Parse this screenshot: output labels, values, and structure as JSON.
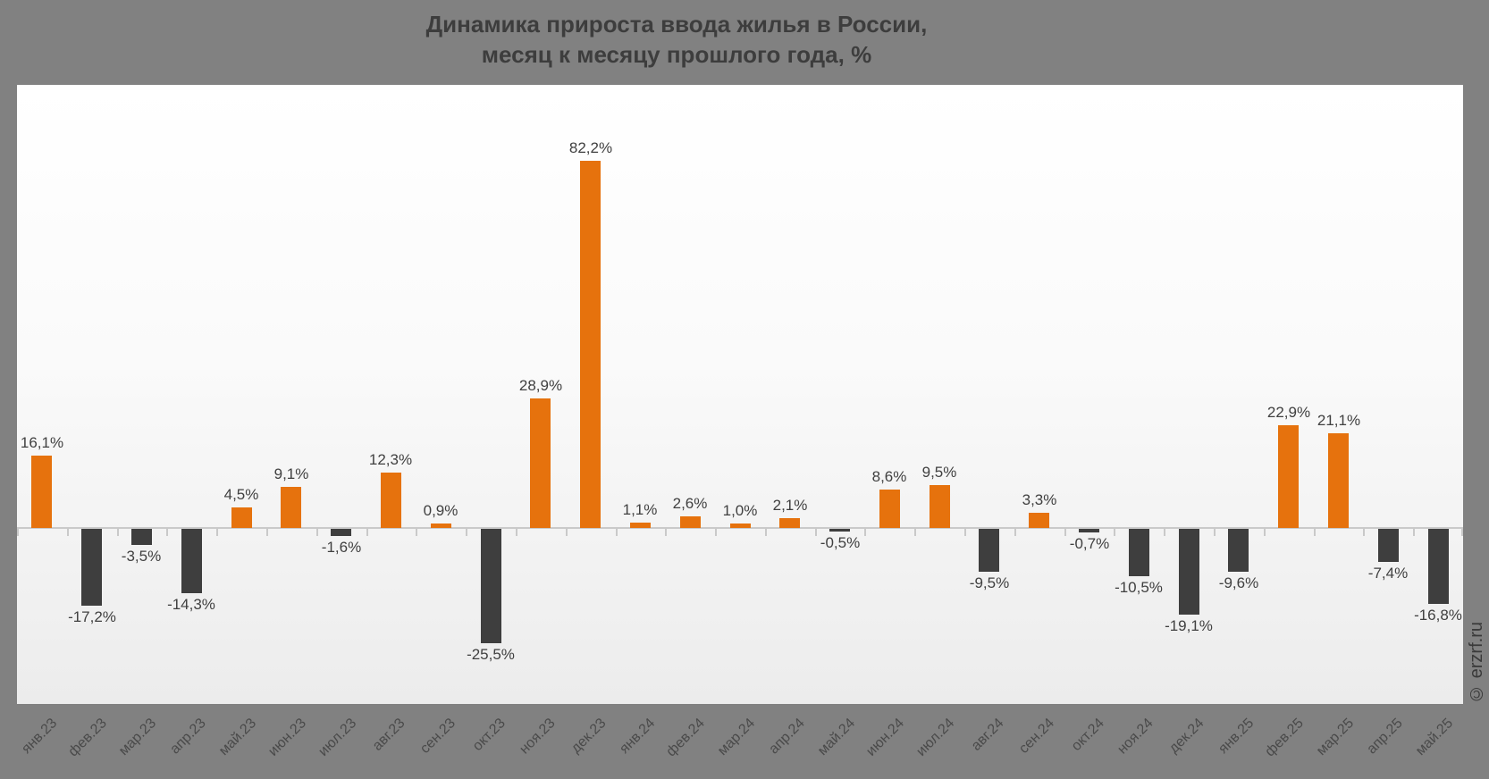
{
  "title": {
    "line1": "Динамика прироста ввода жилья в России,",
    "line2": "месяц к месяцу прошлого года, %"
  },
  "watermark": "© erzrf.ru",
  "colors": {
    "positive_bar": "#e6720d",
    "negative_bar": "#3e3e3e",
    "page_background": "#818181",
    "axis_line": "#c9c9c9",
    "value_label_text": "#404040",
    "title_text": "#3d3d3d",
    "x_label_text": "#4a4a4a"
  },
  "chart_data": {
    "type": "bar",
    "title": "Динамика прироста ввода жилья в России, месяц к месяцу прошлого года, %",
    "xlabel": "",
    "ylabel": "%",
    "ylim": [
      -25.5,
      82.2
    ],
    "grid": false,
    "legend": "none",
    "color_rule": "positive bars orange (#e6720d), negative bars dark gray (#3e3e3e)",
    "categories": [
      "янв.23",
      "фев.23",
      "мар.23",
      "апр.23",
      "май.23",
      "июн.23",
      "июл.23",
      "авг.23",
      "сен.23",
      "окт.23",
      "ноя.23",
      "дек.23",
      "янв.24",
      "фев.24",
      "мар.24",
      "апр.24",
      "май.24",
      "июн.24",
      "июл.24",
      "авг.24",
      "сен.24",
      "окт.24",
      "ноя.24",
      "дек.24",
      "янв.25",
      "фев.25",
      "мар.25",
      "апр.25",
      "май.25"
    ],
    "values": [
      16.1,
      -17.2,
      -3.5,
      -14.3,
      4.5,
      9.1,
      -1.6,
      12.3,
      0.9,
      -25.5,
      28.9,
      82.2,
      1.1,
      2.6,
      1.0,
      2.1,
      -0.5,
      8.6,
      9.5,
      -9.5,
      3.3,
      -0.7,
      -10.5,
      -19.1,
      -9.6,
      22.9,
      21.1,
      -7.4,
      -16.8
    ],
    "value_labels": [
      "16,1%",
      "-17,2%",
      "-3,5%",
      "-14,3%",
      "4,5%",
      "9,1%",
      "-1,6%",
      "12,3%",
      "0,9%",
      "-25,5%",
      "28,9%",
      "82,2%",
      "1,1%",
      "2,6%",
      "1,0%",
      "2,1%",
      "-0,5%",
      "8,6%",
      "9,5%",
      "-9,5%",
      "3,3%",
      "-0,7%",
      "-10,5%",
      "-19,1%",
      "-9,6%",
      "22,9%",
      "21,1%",
      "-7,4%",
      "-16,8%"
    ]
  }
}
